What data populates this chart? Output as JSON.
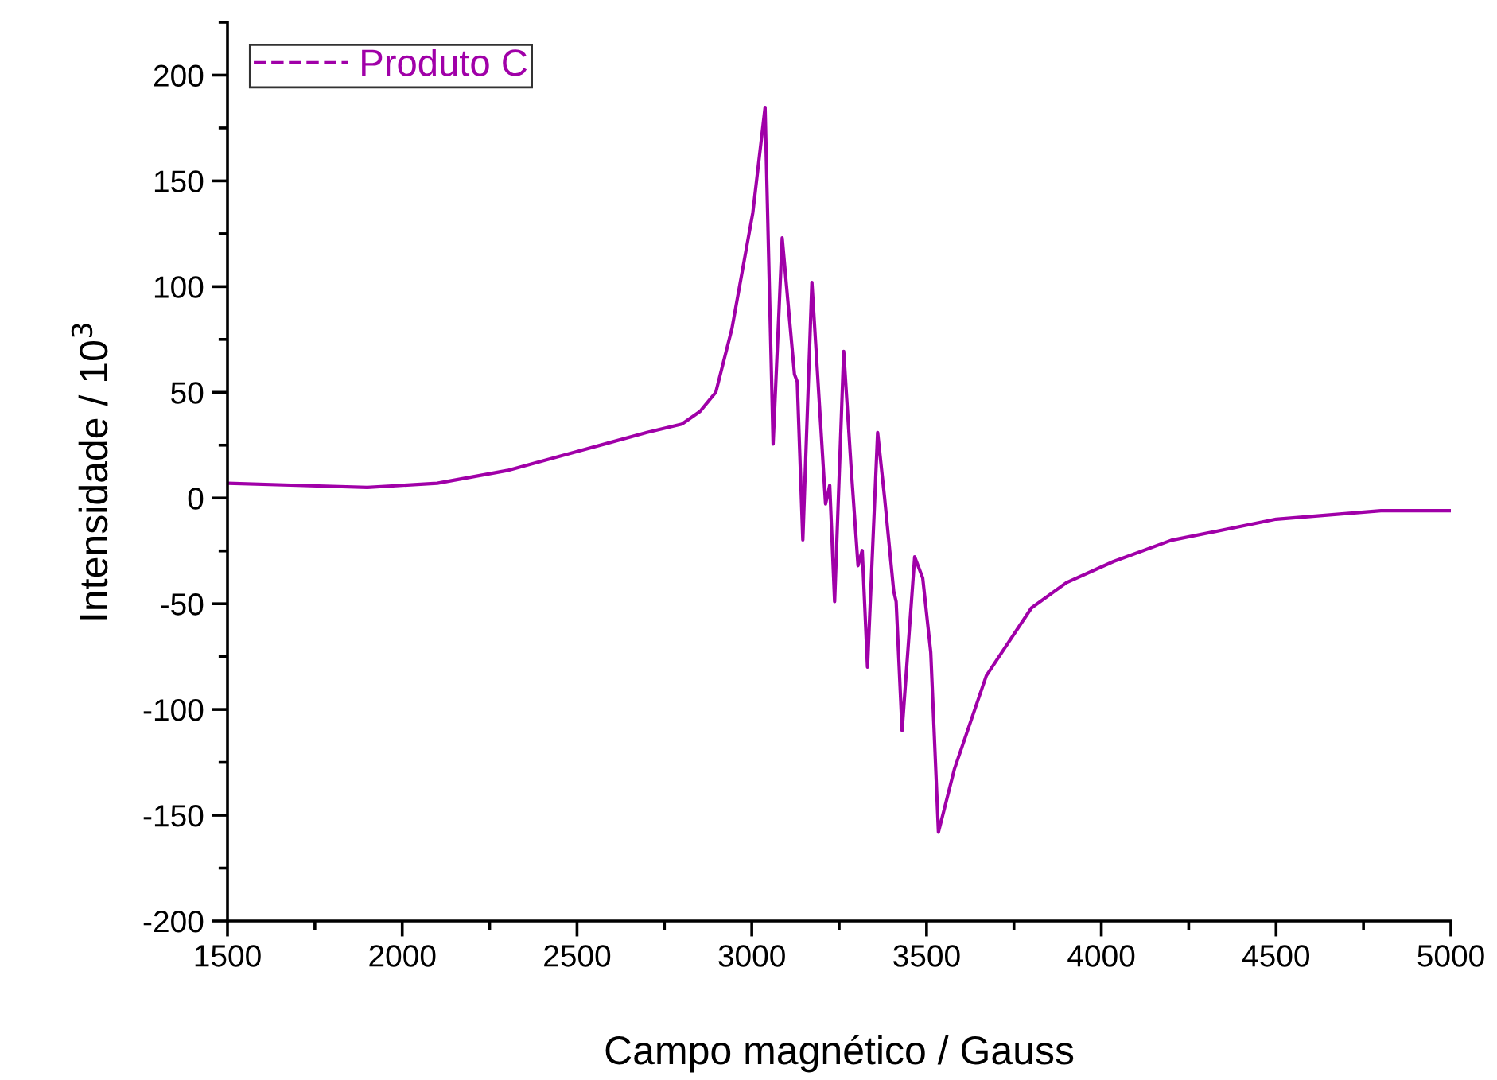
{
  "chart_data": {
    "type": "line",
    "xlabel": "Campo magnético / Gauss",
    "ylabel": "Intensidade / 10$^{3}$",
    "xlim": [
      1500,
      5000
    ],
    "xticks": [
      1500,
      2000,
      2500,
      3000,
      3500,
      4000,
      4500,
      5000
    ],
    "ylim": [
      -200,
      225
    ],
    "yticks": [
      -200,
      -150,
      -100,
      -50,
      0,
      50,
      100,
      150,
      200
    ],
    "legend": "top left",
    "grid": false,
    "series": [
      {
        "name": "Produto C",
        "color": "#a000a8",
        "x": [
          1500,
          1700,
          1900,
          2100,
          2300,
          2500,
          2700,
          2800,
          2852,
          2897,
          2943,
          3003,
          3038,
          3061,
          3087,
          3122,
          3130,
          3146,
          3172,
          3211,
          3223,
          3237,
          3263,
          3284,
          3304,
          3316,
          3331,
          3360,
          3380,
          3406,
          3413,
          3430,
          3466,
          3489,
          3512,
          3534,
          3580,
          3671,
          3800,
          3900,
          4035,
          4200,
          4500,
          4800,
          5000
        ],
        "values": [
          7,
          6,
          5,
          7,
          13,
          22,
          31,
          35,
          41,
          50,
          80,
          135,
          184.7,
          25.5,
          123,
          58.6,
          55,
          -19.8,
          102,
          -2.8,
          6,
          -49,
          69.4,
          14.8,
          -32,
          -24.8,
          -80,
          31,
          0,
          -44,
          -49,
          -110,
          -27.8,
          -37.8,
          -73,
          -158,
          -128,
          -84,
          -52,
          -40,
          -30,
          -20,
          -10,
          -6,
          -6
        ]
      }
    ]
  }
}
